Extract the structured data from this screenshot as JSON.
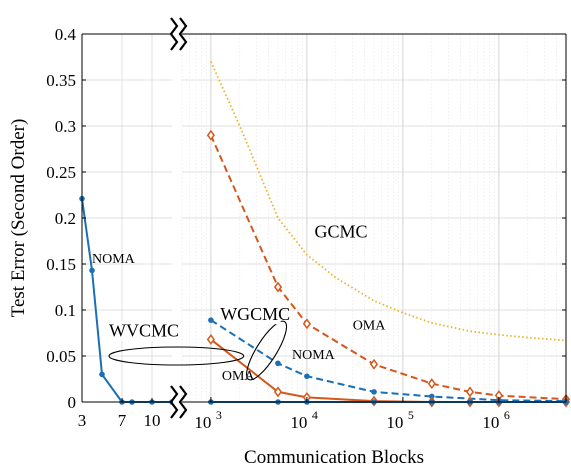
{
  "chart_data": {
    "type": "line",
    "xlabel": "Communication Blocks",
    "ylabel": "Test Error (Second Order)",
    "ylim": [
      0,
      0.4
    ],
    "yticks": [
      0,
      0.05,
      0.1,
      0.15,
      0.2,
      0.25,
      0.3,
      0.35,
      0.4
    ],
    "ytick_labels": [
      "0",
      "0.05",
      "0.1",
      "0.15",
      "0.2",
      "0.25",
      "0.3",
      "0.35",
      "0.4"
    ],
    "grid": true,
    "left_panel": {
      "x_scale": "linear",
      "xlim": [
        3,
        12
      ],
      "xticks": [
        3,
        7,
        10
      ],
      "xtick_labels": [
        "3",
        "7",
        "10"
      ]
    },
    "right_panel": {
      "x_scale": "log",
      "xlim": [
        500,
        5000000
      ],
      "xticks": [
        1000,
        10000,
        100000,
        1000000
      ],
      "xtick_labels": [
        {
          "base": "10",
          "exp": "3"
        },
        {
          "base": "10",
          "exp": "4"
        },
        {
          "base": "10",
          "exp": "5"
        },
        {
          "base": "10",
          "exp": "6"
        }
      ]
    },
    "series": [
      {
        "panel": "left",
        "color": "#1a6fb5",
        "style": "solid",
        "marker": "dot",
        "x": [
          3,
          4,
          5,
          7,
          8,
          10,
          12
        ],
        "y": [
          0.221,
          0.143,
          0.03,
          0.0,
          0.0,
          0.0,
          0.0
        ]
      },
      {
        "panel": "right",
        "color": "#d4581b",
        "style": "dashed",
        "marker": "diamond",
        "x": [
          1000,
          5000,
          10000,
          50000,
          200000,
          500000,
          1000000,
          5000000
        ],
        "y": [
          0.29,
          0.125,
          0.085,
          0.041,
          0.02,
          0.011,
          0.007,
          0.003
        ]
      },
      {
        "panel": "right",
        "color": "#1a6fb5",
        "style": "dashed",
        "marker": "dot",
        "x": [
          1000,
          5000,
          10000,
          50000,
          200000,
          1000000,
          5000000
        ],
        "y": [
          0.089,
          0.042,
          0.028,
          0.011,
          0.006,
          0.002,
          0.001
        ]
      },
      {
        "panel": "right",
        "color": "#d4581b",
        "style": "solid",
        "marker": "diamond",
        "x": [
          1000,
          5000,
          10000,
          50000,
          200000,
          500000,
          1000000,
          5000000
        ],
        "y": [
          0.068,
          0.011,
          0.005,
          0.001,
          0.0,
          0.0,
          0.0,
          0.0
        ]
      },
      {
        "panel": "right",
        "color": "#1a6fb5",
        "style": "solid",
        "marker": "dot",
        "x": [
          1000,
          5000,
          10000,
          50000,
          200000,
          500000,
          1000000,
          5000000
        ],
        "y": [
          0.0,
          0.0,
          0.0,
          0.0,
          0.0,
          0.0,
          0.0,
          0.0
        ]
      },
      {
        "panel": "right",
        "color": "#e8b325",
        "style": "dotted",
        "marker": "none",
        "x": [
          1000,
          2000,
          5000,
          10000,
          20000,
          50000,
          100000,
          200000,
          500000,
          1000000,
          2000000,
          5000000
        ],
        "y": [
          0.37,
          0.3,
          0.2,
          0.16,
          0.135,
          0.11,
          0.097,
          0.086,
          0.077,
          0.073,
          0.07,
          0.067
        ]
      }
    ],
    "annotations": [
      {
        "text": "NOMA",
        "panel": "left",
        "x": 4.0,
        "y": 0.151
      },
      {
        "text": "GCMC",
        "panel": "right",
        "x": 12000,
        "y": 0.179
      },
      {
        "text": "WGCMC",
        "panel": "right",
        "x": 1250,
        "y": 0.089
      },
      {
        "text": "OMA",
        "panel": "right",
        "x": 30000,
        "y": 0.079
      },
      {
        "text": "NOMA",
        "panel": "right",
        "x": 7000,
        "y": 0.047
      },
      {
        "text": "OMA",
        "panel": "right",
        "x": 1300,
        "y": 0.024
      },
      {
        "text": "WVCMC",
        "panel": "left",
        "x": 5.7,
        "y": 0.071
      }
    ]
  }
}
